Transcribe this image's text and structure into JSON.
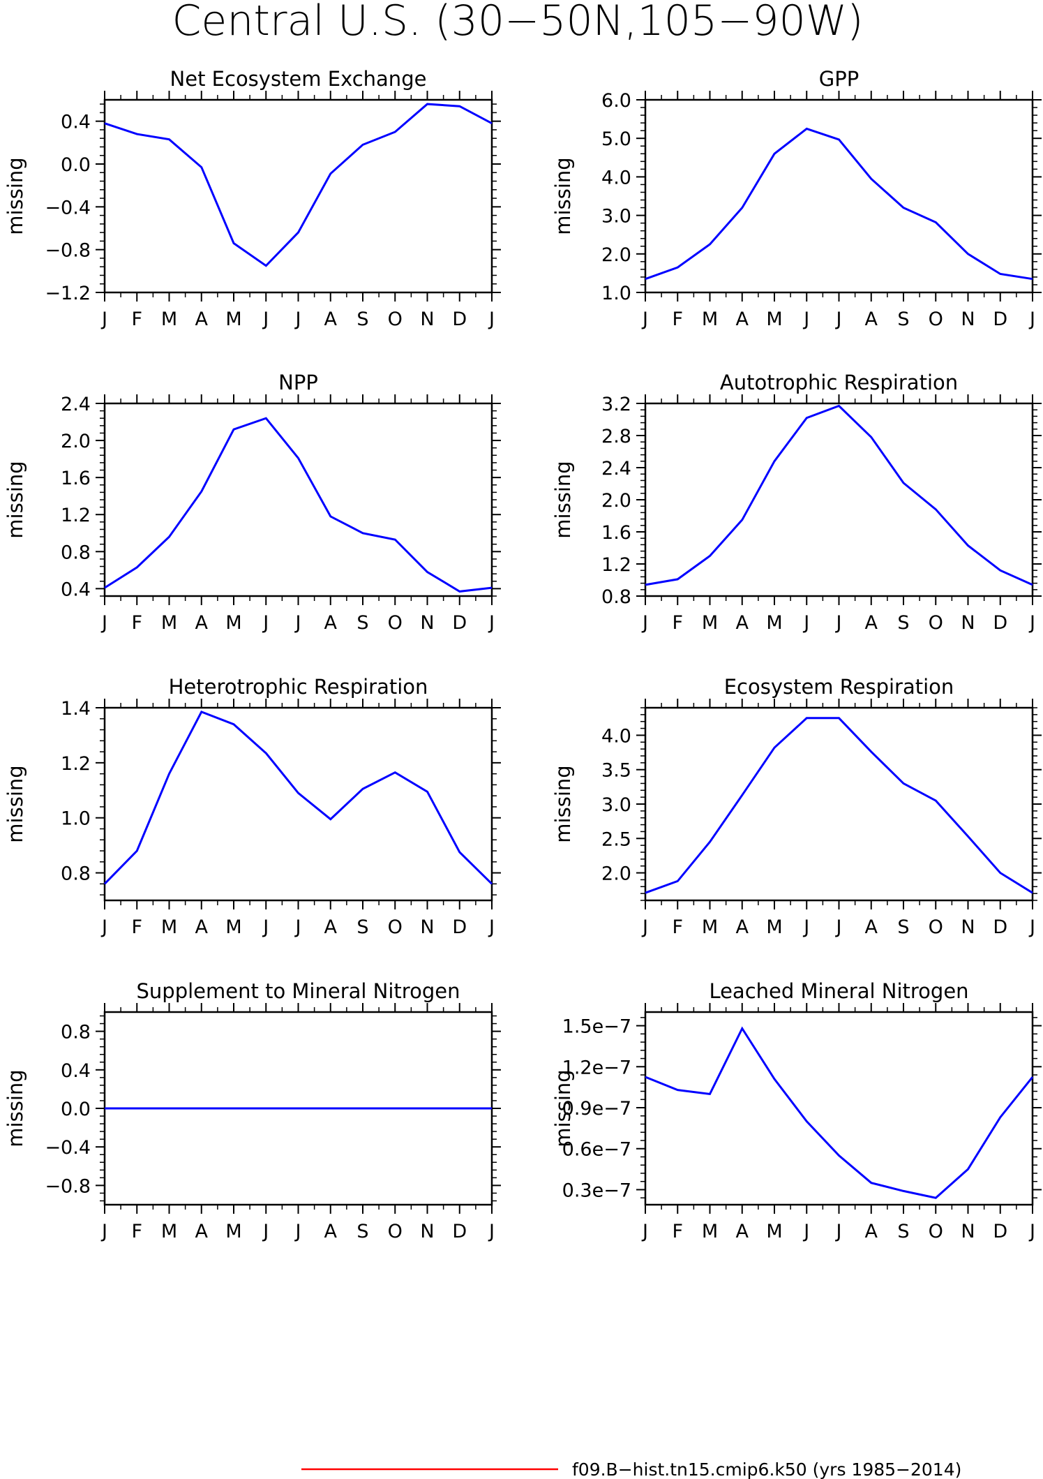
{
  "title": "Central U.S. (30−50N,105−90W)",
  "months": [
    "J",
    "F",
    "M",
    "A",
    "M",
    "J",
    "J",
    "A",
    "S",
    "O",
    "N",
    "D",
    "J"
  ],
  "legend": {
    "label": "f09.B−hist.tn15.cmip6.k50 (yrs 1985−2014)",
    "color": "#ff0000"
  },
  "line_color": "#0000ff",
  "chart_data": [
    {
      "type": "line",
      "title": "Net Ecosystem Exchange",
      "ylabel": "missing",
      "ylim": [
        -1.2,
        0.6
      ],
      "yticks": [
        -1.2,
        -0.8,
        -0.4,
        0.0,
        0.4
      ],
      "ytick_labels": [
        "−1.2",
        "−0.8",
        "−0.4",
        "0.0",
        "0.4"
      ],
      "series": [
        {
          "values": [
            0.38,
            0.28,
            0.23,
            -0.03,
            -0.74,
            -0.95,
            -0.64,
            -0.09,
            0.18,
            0.3,
            0.56,
            0.54,
            0.38
          ]
        }
      ]
    },
    {
      "type": "line",
      "title": "GPP",
      "ylabel": "missing",
      "ylim": [
        1.0,
        6.0
      ],
      "yticks": [
        1.0,
        2.0,
        3.0,
        4.0,
        5.0,
        6.0
      ],
      "ytick_labels": [
        "1.0",
        "2.0",
        "3.0",
        "4.0",
        "5.0",
        "6.0"
      ],
      "series": [
        {
          "values": [
            1.35,
            1.65,
            2.25,
            3.2,
            4.6,
            5.25,
            4.97,
            3.95,
            3.2,
            2.82,
            2.0,
            1.48,
            1.35
          ]
        }
      ]
    },
    {
      "type": "line",
      "title": "NPP",
      "ylabel": "missing",
      "ylim": [
        0.32,
        2.4
      ],
      "yticks": [
        0.4,
        0.8,
        1.2,
        1.6,
        2.0,
        2.4
      ],
      "ytick_labels": [
        "0.4",
        "0.8",
        "1.2",
        "1.6",
        "2.0",
        "2.4"
      ],
      "series": [
        {
          "values": [
            0.41,
            0.63,
            0.96,
            1.45,
            2.12,
            2.24,
            1.81,
            1.18,
            1.0,
            0.93,
            0.58,
            0.37,
            0.41
          ]
        }
      ]
    },
    {
      "type": "line",
      "title": "Autotrophic Respiration",
      "ylabel": "missing",
      "ylim": [
        0.8,
        3.2
      ],
      "yticks": [
        0.8,
        1.2,
        1.6,
        2.0,
        2.4,
        2.8,
        3.2
      ],
      "ytick_labels": [
        "0.8",
        "1.2",
        "1.6",
        "2.0",
        "2.4",
        "2.8",
        "3.2"
      ],
      "series": [
        {
          "values": [
            0.94,
            1.01,
            1.3,
            1.75,
            2.48,
            3.02,
            3.17,
            2.78,
            2.21,
            1.88,
            1.43,
            1.12,
            0.94
          ]
        }
      ]
    },
    {
      "type": "line",
      "title": "Heterotrophic Respiration",
      "ylabel": "missing",
      "ylim": [
        0.7,
        1.4
      ],
      "yticks": [
        0.8,
        1.0,
        1.2,
        1.4
      ],
      "ytick_labels": [
        "0.8",
        "1.0",
        "1.2",
        "1.4"
      ],
      "series": [
        {
          "values": [
            0.76,
            0.88,
            1.16,
            1.385,
            1.34,
            1.235,
            1.09,
            0.995,
            1.105,
            1.165,
            1.095,
            0.875,
            0.76
          ]
        }
      ]
    },
    {
      "type": "line",
      "title": "Ecosystem Respiration",
      "ylabel": "missing",
      "ylim": [
        1.6,
        4.4
      ],
      "yticks": [
        2.0,
        2.5,
        3.0,
        3.5,
        4.0
      ],
      "ytick_labels": [
        "2.0",
        "2.5",
        "3.0",
        "3.5",
        "4.0"
      ],
      "series": [
        {
          "values": [
            1.71,
            1.88,
            2.45,
            3.13,
            3.82,
            4.25,
            4.25,
            3.76,
            3.3,
            3.05,
            2.53,
            2.0,
            1.71
          ]
        }
      ]
    },
    {
      "type": "line",
      "title": "Supplement to Mineral Nitrogen",
      "ylabel": "missing",
      "ylim": [
        -1.0,
        1.0
      ],
      "yticks": [
        -0.8,
        -0.4,
        0.0,
        0.4,
        0.8
      ],
      "ytick_labels": [
        "−0.8",
        "−0.4",
        "0.0",
        "0.4",
        "0.8"
      ],
      "series": [
        {
          "values": [
            0,
            0,
            0,
            0,
            0,
            0,
            0,
            0,
            0,
            0,
            0,
            0,
            0
          ]
        }
      ]
    },
    {
      "type": "line",
      "title": "Leached Mineral Nitrogen",
      "ylabel": "missing",
      "ylim": [
        1.9e-08,
        1.6e-07
      ],
      "yticks": [
        3e-08,
        6e-08,
        9e-08,
        1.2e-07,
        1.5e-07
      ],
      "ytick_labels": [
        "0.3e−7",
        "0.6e−7",
        "0.9e−7",
        "1.2e−7",
        "1.5e−7"
      ],
      "series": [
        {
          "values": [
            1.125e-07,
            1.03e-07,
            1e-07,
            1.48e-07,
            1.11e-07,
            8e-08,
            5.5e-08,
            3.5e-08,
            2.9e-08,
            2.4e-08,
            4.5e-08,
            8.3e-08,
            1.125e-07
          ]
        }
      ]
    }
  ]
}
